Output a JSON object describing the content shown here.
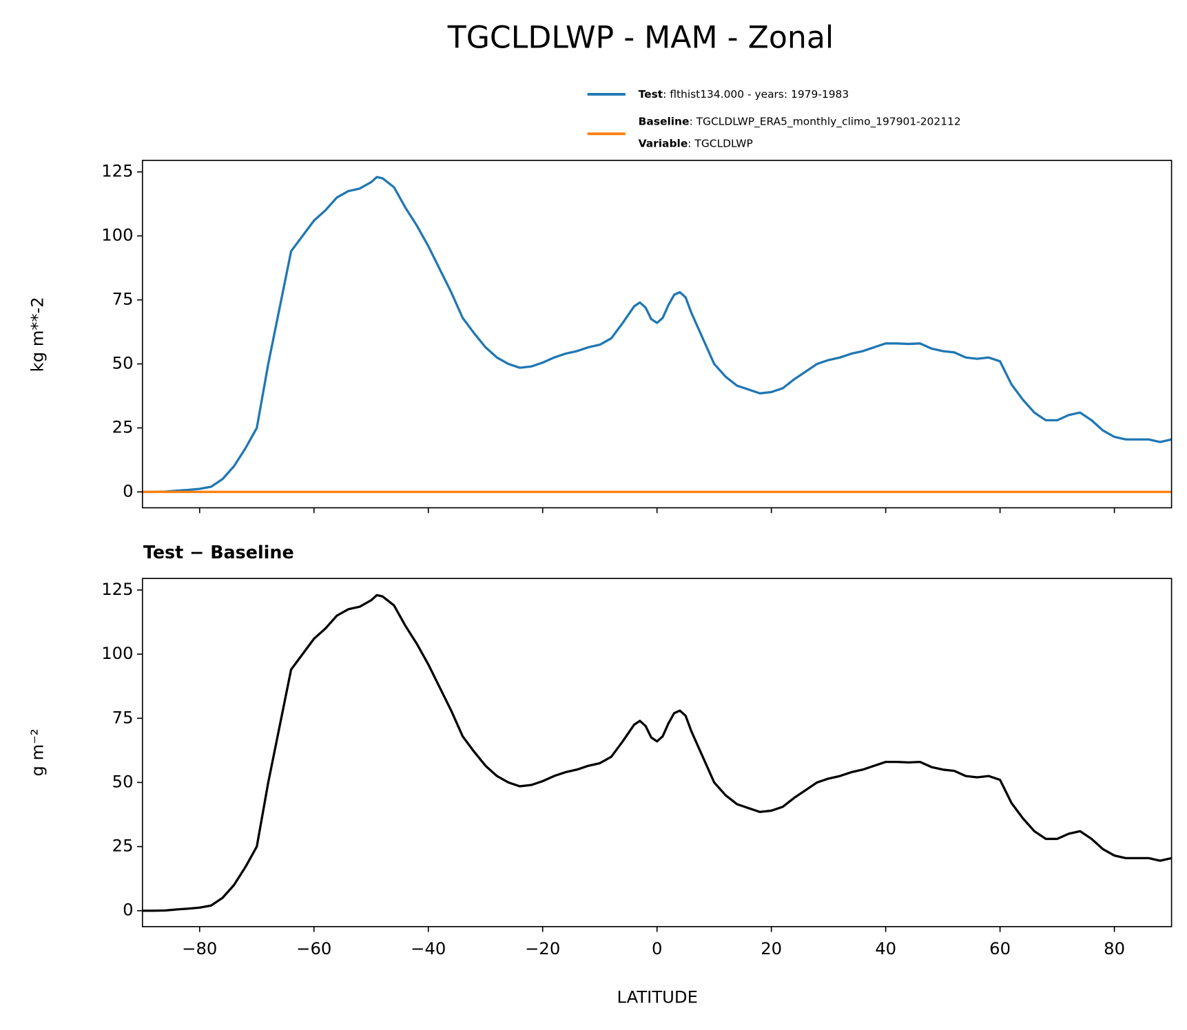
{
  "chart_data": [
    {
      "type": "line",
      "title": "TGCLDLWP - MAM - Zonal",
      "ylabel": "kg m**-2",
      "x": [
        -90,
        -88,
        -86,
        -84,
        -82,
        -80,
        -78,
        -76,
        -74,
        -72,
        -70,
        -68,
        -66,
        -64,
        -62,
        -60,
        -58,
        -56,
        -54,
        -52,
        -50,
        -49,
        -48,
        -46,
        -44,
        -42,
        -40,
        -38,
        -36,
        -34,
        -32,
        -30,
        -28,
        -26,
        -24,
        -22,
        -20,
        -18,
        -16,
        -14,
        -12,
        -10,
        -8,
        -6,
        -4,
        -3,
        -2,
        -1,
        0,
        1,
        2,
        3,
        4,
        5,
        6,
        8,
        10,
        12,
        14,
        16,
        18,
        20,
        22,
        24,
        26,
        28,
        30,
        32,
        34,
        36,
        38,
        40,
        42,
        44,
        46,
        48,
        50,
        52,
        54,
        56,
        58,
        60,
        62,
        64,
        66,
        68,
        70,
        72,
        74,
        76,
        78,
        80,
        82,
        84,
        86,
        88,
        90
      ],
      "series": [
        {
          "name": "Test",
          "description": ": flthist134.000 - years: 1979-1983",
          "color": "#1f77b4",
          "values": [
            0,
            0,
            0.1,
            0.5,
            0.8,
            1.2,
            2,
            5,
            10,
            17,
            25,
            50,
            72,
            94,
            100,
            106,
            110,
            115,
            117.5,
            118.5,
            121,
            123,
            122.5,
            119,
            111,
            104,
            96,
            87,
            78,
            68,
            62,
            56.5,
            52.5,
            50,
            48.5,
            49,
            50.5,
            52.5,
            54,
            55,
            56.5,
            57.5,
            60,
            66,
            72.5,
            74,
            72,
            67.5,
            66,
            68,
            73,
            77,
            78,
            76,
            70,
            60,
            50,
            45,
            41.5,
            40,
            38.5,
            39,
            40.5,
            44,
            47,
            50,
            51.5,
            52.5,
            54,
            55,
            56.5,
            58,
            58,
            57.8,
            58,
            56,
            55,
            54.5,
            52.5,
            52,
            52.5,
            51,
            42,
            36,
            31,
            28,
            28,
            30,
            31,
            28,
            24,
            21.5,
            20.5,
            20.5,
            20.5,
            19.5,
            20.5
          ]
        },
        {
          "name": "Baseline",
          "description": ": TGCLDLWP_ERA5_monthly_climo_197901-202112",
          "extra_name": "Variable",
          "extra_description": ": TGCLDLWP",
          "color": "#ff7f0e",
          "values": [
            0,
            0,
            0,
            0,
            0,
            0,
            0,
            0,
            0,
            0,
            0,
            0,
            0,
            0,
            0,
            0,
            0,
            0,
            0,
            0,
            0,
            0,
            0,
            0,
            0,
            0,
            0,
            0,
            0,
            0,
            0,
            0,
            0,
            0,
            0,
            0,
            0,
            0,
            0,
            0,
            0,
            0,
            0,
            0,
            0,
            0,
            0,
            0,
            0,
            0,
            0,
            0,
            0,
            0,
            0,
            0,
            0,
            0,
            0,
            0,
            0,
            0,
            0,
            0,
            0,
            0,
            0,
            0,
            0,
            0,
            0,
            0,
            0,
            0,
            0,
            0,
            0,
            0,
            0,
            0,
            0,
            0,
            0,
            0,
            0,
            0,
            0,
            0,
            0,
            0,
            0,
            0,
            0,
            0,
            0,
            0,
            0
          ]
        }
      ],
      "xlim": [
        -90,
        90
      ],
      "xticks": [
        -80,
        -60,
        -40,
        -20,
        0,
        20,
        40,
        60,
        80
      ],
      "ylim": [
        -6.2,
        129.5
      ],
      "yticks": [
        0,
        25,
        50,
        75,
        100,
        125
      ]
    },
    {
      "type": "line",
      "title": "Test − Baseline",
      "ylabel": "g m⁻²",
      "xlabel": "LATITUDE",
      "x": [
        -90,
        -88,
        -86,
        -84,
        -82,
        -80,
        -78,
        -76,
        -74,
        -72,
        -70,
        -68,
        -66,
        -64,
        -62,
        -60,
        -58,
        -56,
        -54,
        -52,
        -50,
        -49,
        -48,
        -46,
        -44,
        -42,
        -40,
        -38,
        -36,
        -34,
        -32,
        -30,
        -28,
        -26,
        -24,
        -22,
        -20,
        -18,
        -16,
        -14,
        -12,
        -10,
        -8,
        -6,
        -4,
        -3,
        -2,
        -1,
        0,
        1,
        2,
        3,
        4,
        5,
        6,
        8,
        10,
        12,
        14,
        16,
        18,
        20,
        22,
        24,
        26,
        28,
        30,
        32,
        34,
        36,
        38,
        40,
        42,
        44,
        46,
        48,
        50,
        52,
        54,
        56,
        58,
        60,
        62,
        64,
        66,
        68,
        70,
        72,
        74,
        76,
        78,
        80,
        82,
        84,
        86,
        88,
        90
      ],
      "series": [
        {
          "color": "#000000",
          "values": [
            0,
            0,
            0.1,
            0.5,
            0.8,
            1.2,
            2,
            5,
            10,
            17,
            25,
            50,
            72,
            94,
            100,
            106,
            110,
            115,
            117.5,
            118.5,
            121,
            123,
            122.5,
            119,
            111,
            104,
            96,
            87,
            78,
            68,
            62,
            56.5,
            52.5,
            50,
            48.5,
            49,
            50.5,
            52.5,
            54,
            55,
            56.5,
            57.5,
            60,
            66,
            72.5,
            74,
            72,
            67.5,
            66,
            68,
            73,
            77,
            78,
            76,
            70,
            60,
            50,
            45,
            41.5,
            40,
            38.5,
            39,
            40.5,
            44,
            47,
            50,
            51.5,
            52.5,
            54,
            55,
            56.5,
            58,
            58,
            57.8,
            58,
            56,
            55,
            54.5,
            52.5,
            52,
            52.5,
            51,
            42,
            36,
            31,
            28,
            28,
            30,
            31,
            28,
            24,
            21.5,
            20.5,
            20.5,
            20.5,
            19.5,
            20.5
          ]
        }
      ],
      "xlim": [
        -90,
        90
      ],
      "xticks": [
        {
          "value": -80,
          "label": "−80"
        },
        {
          "value": -60,
          "label": "−60"
        },
        {
          "value": -40,
          "label": "−40"
        },
        {
          "value": -20,
          "label": "−20"
        },
        0,
        20,
        40,
        60,
        80
      ],
      "ylim": [
        -6.2,
        129.5
      ],
      "yticks": [
        0,
        25,
        50,
        75,
        100,
        125
      ]
    }
  ]
}
